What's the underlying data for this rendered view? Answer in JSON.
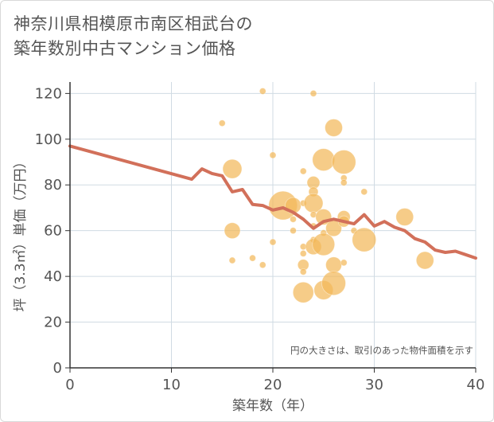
{
  "chart_data": {
    "type": "scatter",
    "title_lines": [
      "神奈川県相模原市南区相武台の",
      "築年数別中古マンション価格"
    ],
    "xlabel": "築年数（年）",
    "ylabel": "坪（3.3㎡）単価（万円）",
    "note": "円の大きさは、取引のあった物件面積を示す",
    "xlim": [
      0,
      40
    ],
    "ylim": [
      0,
      125
    ],
    "x_ticks": [
      0,
      10,
      20,
      30,
      40
    ],
    "y_ticks": [
      0,
      20,
      40,
      60,
      80,
      100,
      120
    ],
    "grid": true,
    "colors": {
      "bubble": "#f3b95a",
      "line": "#d2705a",
      "grid": "#d0dbe3",
      "axis": "#333333"
    },
    "scatter_points": [
      {
        "x": 15,
        "y": 107,
        "r": 4
      },
      {
        "x": 16,
        "y": 87,
        "r": 12
      },
      {
        "x": 16,
        "y": 60,
        "r": 10
      },
      {
        "x": 16,
        "y": 47,
        "r": 4
      },
      {
        "x": 18,
        "y": 48,
        "r": 4
      },
      {
        "x": 19,
        "y": 121,
        "r": 4
      },
      {
        "x": 19,
        "y": 45,
        "r": 4
      },
      {
        "x": 20,
        "y": 93,
        "r": 4
      },
      {
        "x": 20,
        "y": 55,
        "r": 4
      },
      {
        "x": 21,
        "y": 71,
        "r": 18
      },
      {
        "x": 22,
        "y": 71,
        "r": 10
      },
      {
        "x": 22,
        "y": 65,
        "r": 4
      },
      {
        "x": 22,
        "y": 60,
        "r": 4
      },
      {
        "x": 23,
        "y": 86,
        "r": 4
      },
      {
        "x": 23,
        "y": 72,
        "r": 4
      },
      {
        "x": 23,
        "y": 53,
        "r": 4
      },
      {
        "x": 23,
        "y": 50,
        "r": 4
      },
      {
        "x": 23,
        "y": 45,
        "r": 7
      },
      {
        "x": 23,
        "y": 42,
        "r": 4
      },
      {
        "x": 23,
        "y": 33,
        "r": 13
      },
      {
        "x": 24,
        "y": 120,
        "r": 4
      },
      {
        "x": 24,
        "y": 81,
        "r": 8
      },
      {
        "x": 24,
        "y": 77,
        "r": 6
      },
      {
        "x": 24,
        "y": 72,
        "r": 12
      },
      {
        "x": 24,
        "y": 67,
        "r": 4
      },
      {
        "x": 24,
        "y": 62,
        "r": 4
      },
      {
        "x": 24,
        "y": 56,
        "r": 4
      },
      {
        "x": 24,
        "y": 53,
        "r": 10
      },
      {
        "x": 25,
        "y": 91,
        "r": 14
      },
      {
        "x": 25,
        "y": 66,
        "r": 10
      },
      {
        "x": 25,
        "y": 59,
        "r": 4
      },
      {
        "x": 25,
        "y": 54,
        "r": 14
      },
      {
        "x": 25,
        "y": 34,
        "r": 12
      },
      {
        "x": 26,
        "y": 105,
        "r": 11
      },
      {
        "x": 26,
        "y": 61,
        "r": 10
      },
      {
        "x": 26,
        "y": 45,
        "r": 10
      },
      {
        "x": 26,
        "y": 37,
        "r": 15
      },
      {
        "x": 27,
        "y": 90,
        "r": 15
      },
      {
        "x": 27,
        "y": 83,
        "r": 4
      },
      {
        "x": 27,
        "y": 81,
        "r": 4
      },
      {
        "x": 27,
        "y": 66,
        "r": 8
      },
      {
        "x": 27,
        "y": 64,
        "r": 7
      },
      {
        "x": 27,
        "y": 46,
        "r": 4
      },
      {
        "x": 28,
        "y": 60,
        "r": 4
      },
      {
        "x": 29,
        "y": 77,
        "r": 4
      },
      {
        "x": 29,
        "y": 56,
        "r": 15
      },
      {
        "x": 33,
        "y": 66,
        "r": 11
      },
      {
        "x": 35,
        "y": 47,
        "r": 11
      }
    ],
    "trend_line": [
      {
        "x": 0,
        "y": 97
      },
      {
        "x": 12,
        "y": 82.5
      },
      {
        "x": 13,
        "y": 87
      },
      {
        "x": 14,
        "y": 85
      },
      {
        "x": 15,
        "y": 84
      },
      {
        "x": 16,
        "y": 77
      },
      {
        "x": 17,
        "y": 78
      },
      {
        "x": 18,
        "y": 71.5
      },
      {
        "x": 19,
        "y": 71
      },
      {
        "x": 20,
        "y": 69
      },
      {
        "x": 21,
        "y": 70
      },
      {
        "x": 22,
        "y": 68
      },
      {
        "x": 23,
        "y": 65
      },
      {
        "x": 24,
        "y": 61
      },
      {
        "x": 25,
        "y": 64
      },
      {
        "x": 26,
        "y": 65
      },
      {
        "x": 27,
        "y": 64
      },
      {
        "x": 28,
        "y": 63
      },
      {
        "x": 29,
        "y": 67
      },
      {
        "x": 30,
        "y": 62
      },
      {
        "x": 31,
        "y": 64
      },
      {
        "x": 32,
        "y": 61.5
      },
      {
        "x": 33,
        "y": 60
      },
      {
        "x": 34,
        "y": 56.5
      },
      {
        "x": 35,
        "y": 55
      },
      {
        "x": 36,
        "y": 51.5
      },
      {
        "x": 37,
        "y": 50.5
      },
      {
        "x": 38,
        "y": 51
      },
      {
        "x": 39,
        "y": 49.5
      },
      {
        "x": 40,
        "y": 48
      }
    ]
  }
}
